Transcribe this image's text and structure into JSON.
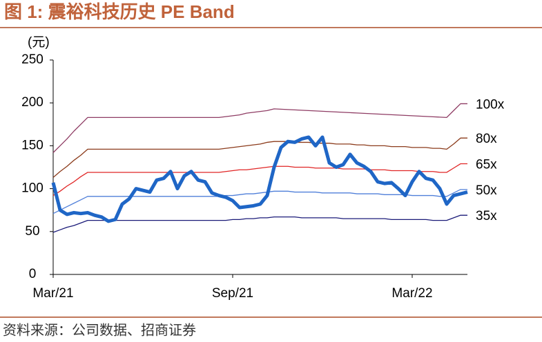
{
  "chart_data": {
    "type": "line",
    "title": "图 1:  震裕科技历史 PE Band",
    "y_label": "(元)",
    "source": "资料来源：公司数据、招商证券",
    "categories": [
      "Mar/21",
      null,
      null,
      null,
      null,
      null,
      null,
      null,
      null,
      null,
      null,
      null,
      null,
      null,
      null,
      null,
      null,
      null,
      null,
      null,
      null,
      null,
      null,
      null,
      null,
      null,
      "Sep/21",
      null,
      null,
      null,
      null,
      null,
      null,
      null,
      null,
      null,
      null,
      null,
      null,
      null,
      null,
      null,
      null,
      null,
      null,
      null,
      null,
      null,
      null,
      null,
      null,
      null,
      "Mar/22",
      null,
      null,
      null,
      null,
      null,
      null,
      null,
      null
    ],
    "ylim": [
      0,
      250
    ],
    "yticks": [
      0,
      50,
      100,
      150,
      200,
      250
    ],
    "series": [
      {
        "name": "100x",
        "color": "#8e3b63",
        "values": [
          142,
          150,
          158,
          167,
          175,
          183,
          183,
          183,
          183,
          183,
          183,
          183,
          183,
          183,
          183,
          183,
          183,
          183,
          183,
          183,
          183,
          183,
          183,
          183,
          183,
          184,
          185,
          186,
          188,
          189,
          190,
          191,
          193,
          192.6,
          192.2,
          191.8,
          191.4,
          191,
          190.6,
          190.2,
          189.8,
          189.4,
          189,
          188.6,
          188.2,
          187.8,
          187.4,
          187,
          186.6,
          186.2,
          185.8,
          185.4,
          185,
          184.6,
          184.2,
          183.8,
          183.4,
          183,
          191,
          199,
          199
        ]
      },
      {
        "name": "80x",
        "color": "#8b3a1a",
        "values": [
          113,
          120,
          126,
          133,
          139,
          146,
          146,
          146,
          146,
          146,
          146,
          146,
          146,
          146,
          146,
          146,
          146,
          146,
          146,
          146,
          146,
          146,
          146,
          146,
          146,
          147,
          148,
          149,
          150,
          151,
          152,
          154,
          155,
          155,
          155,
          154,
          154,
          154,
          153,
          153,
          153,
          152,
          152,
          152,
          151,
          151,
          150,
          150,
          150,
          149,
          149,
          149,
          148,
          148,
          148,
          147,
          147,
          146,
          152,
          159,
          159
        ]
      },
      {
        "name": "65x",
        "color": "#e02424",
        "values": [
          92,
          97,
          103,
          108,
          114,
          119,
          119,
          119,
          119,
          119,
          119,
          119,
          119,
          119,
          119,
          119,
          119,
          119,
          119,
          119,
          119,
          119,
          119,
          119,
          119,
          120,
          121,
          122,
          122,
          123,
          124,
          125,
          126,
          126,
          126,
          125,
          125,
          125,
          124,
          124,
          124,
          124,
          123,
          123,
          123,
          123,
          122,
          122,
          122,
          121,
          121,
          121,
          121,
          120,
          120,
          120,
          119,
          119,
          124,
          129,
          129
        ]
      },
      {
        "name": "50x",
        "color": "#4f7fd9",
        "values": [
          71,
          75,
          79,
          83,
          87,
          91,
          91,
          91,
          91,
          91,
          91,
          91,
          91,
          91,
          91,
          91,
          91,
          91,
          91,
          91,
          91,
          91,
          91,
          91,
          91,
          92,
          92,
          93,
          94,
          94,
          95,
          96,
          97,
          97,
          97,
          96,
          96,
          96,
          96,
          95,
          95,
          95,
          95,
          95,
          94,
          94,
          94,
          94,
          93,
          93,
          93,
          93,
          92,
          92,
          92,
          92,
          91,
          91,
          95,
          99,
          99
        ]
      },
      {
        "name": "35x",
        "color": "#1a1a78",
        "values": [
          49,
          52,
          55,
          57,
          60,
          63,
          63,
          63,
          63,
          63,
          63,
          63,
          63,
          63,
          63,
          63,
          63,
          63,
          63,
          63,
          63,
          63,
          63,
          63,
          63,
          63,
          64,
          64,
          65,
          65,
          66,
          66,
          67,
          67,
          67,
          67,
          66,
          66,
          66,
          66,
          66,
          66,
          65,
          65,
          65,
          65,
          65,
          65,
          65,
          64,
          64,
          64,
          64,
          64,
          64,
          63,
          63,
          63,
          66,
          69,
          69
        ]
      },
      {
        "color": "#1f66c6",
        "values": [
          107,
          75,
          70,
          72,
          71,
          72,
          69,
          67,
          62,
          64,
          82,
          88,
          100,
          98,
          96,
          110,
          112,
          120,
          100,
          115,
          120,
          110,
          108,
          95,
          92,
          90,
          86,
          78,
          79,
          80,
          82,
          92,
          125,
          148,
          155,
          154,
          158,
          160,
          150,
          160,
          130,
          125,
          128,
          140,
          130,
          126,
          120,
          108,
          106,
          107,
          100,
          92,
          108,
          120,
          112,
          110,
          100,
          82,
          92,
          94,
          96
        ]
      }
    ]
  }
}
